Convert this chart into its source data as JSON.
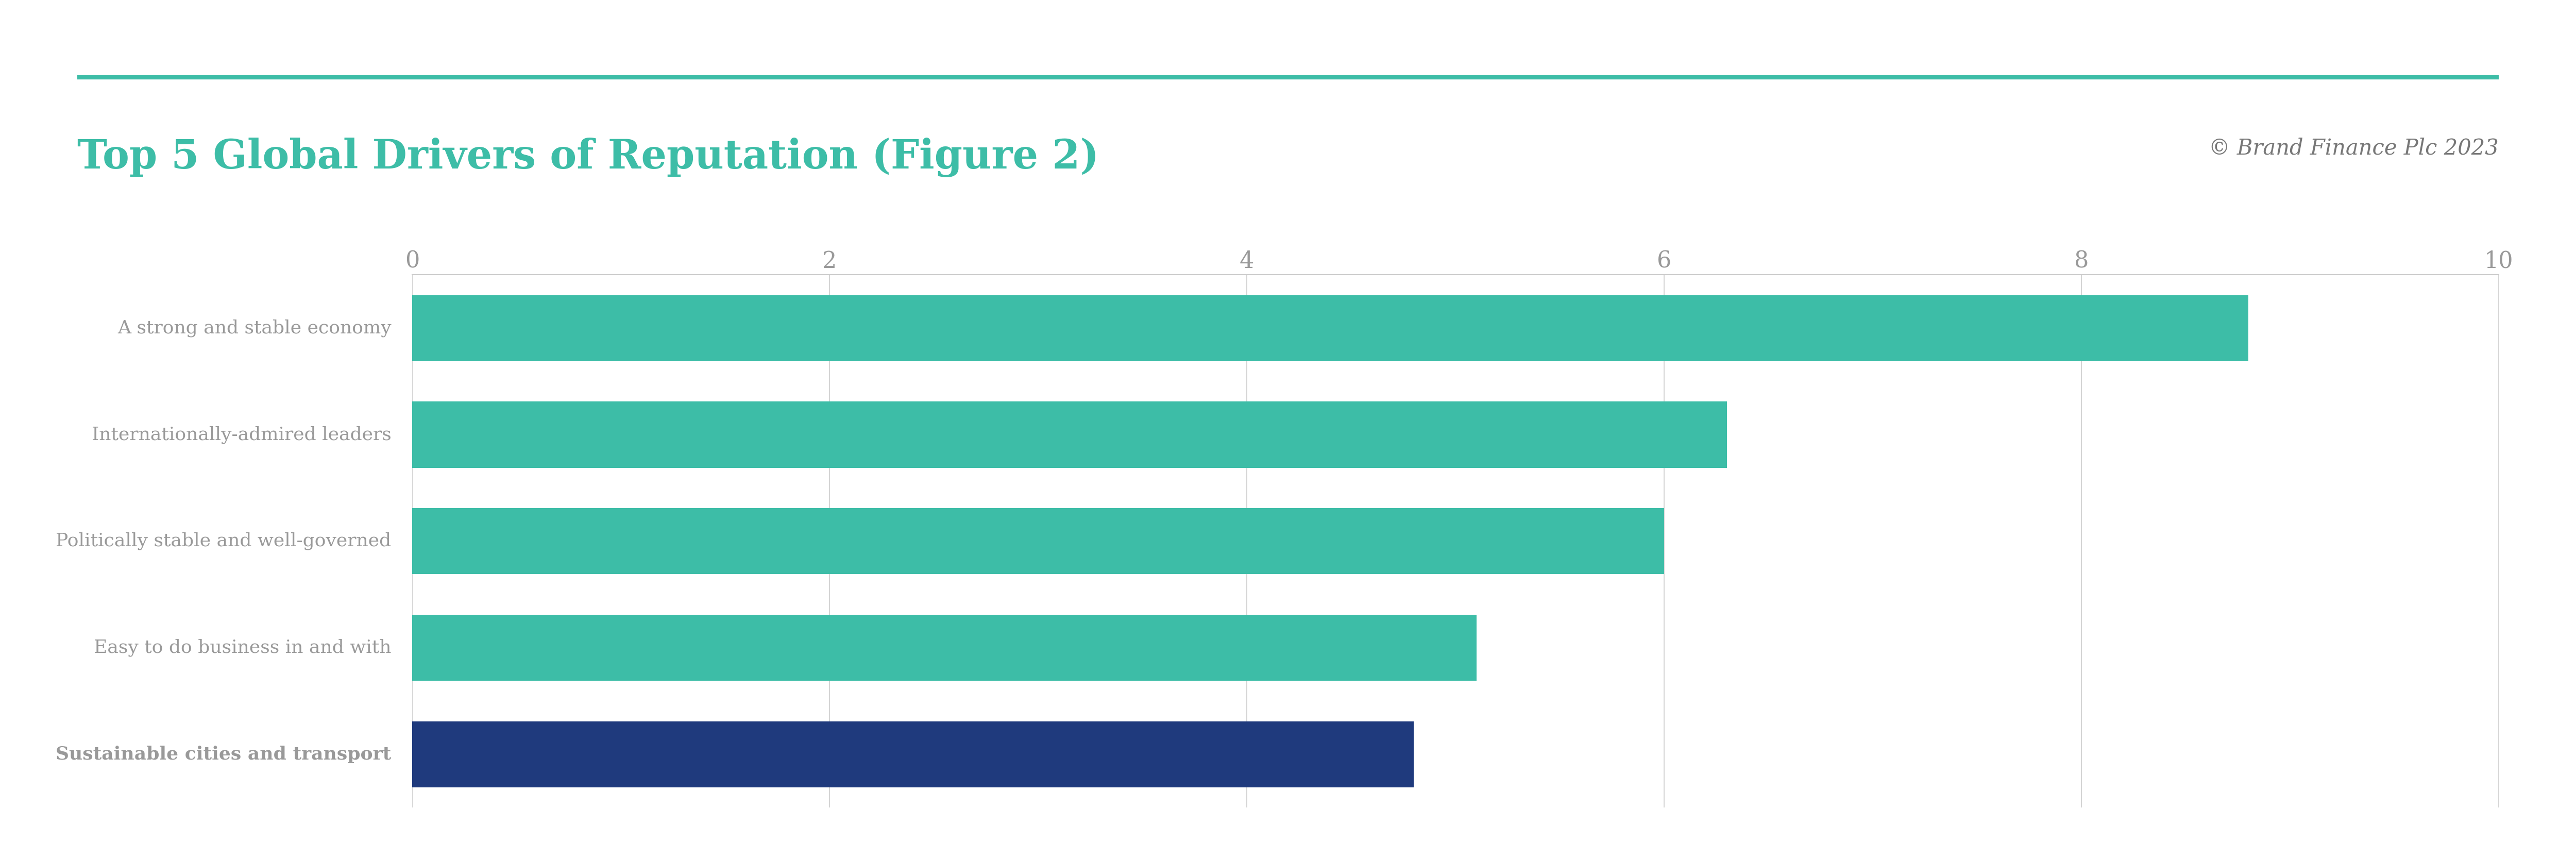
{
  "title": "Top 5 Global Drivers of Reputation (Figure 2)",
  "copyright": "© Brand Finance Plc 2023",
  "categories": [
    "Sustainable cities and transport",
    "Easy to do business in and with",
    "Politically stable and well-governed",
    "Internationally-admired leaders",
    "A strong and stable economy"
  ],
  "values": [
    4.8,
    5.1,
    6.0,
    6.3,
    8.8
  ],
  "bar_colors": [
    "#1f3a7d",
    "#3dbda7",
    "#3dbda7",
    "#3dbda7",
    "#3dbda7"
  ],
  "bold_labels": [
    true,
    false,
    false,
    false,
    false
  ],
  "xlim": [
    0,
    10
  ],
  "xticks": [
    0,
    2,
    4,
    6,
    8,
    10
  ],
  "title_color": "#3dbda7",
  "title_fontsize": 56,
  "copyright_color": "#777777",
  "copyright_fontsize": 30,
  "tick_label_color": "#999999",
  "tick_fontsize": 32,
  "ytick_fontsize": 26,
  "bar_height": 0.62,
  "top_line_color": "#3dbda7",
  "background_color": "#ffffff",
  "grid_color": "#cccccc",
  "spine_color": "#cccccc"
}
